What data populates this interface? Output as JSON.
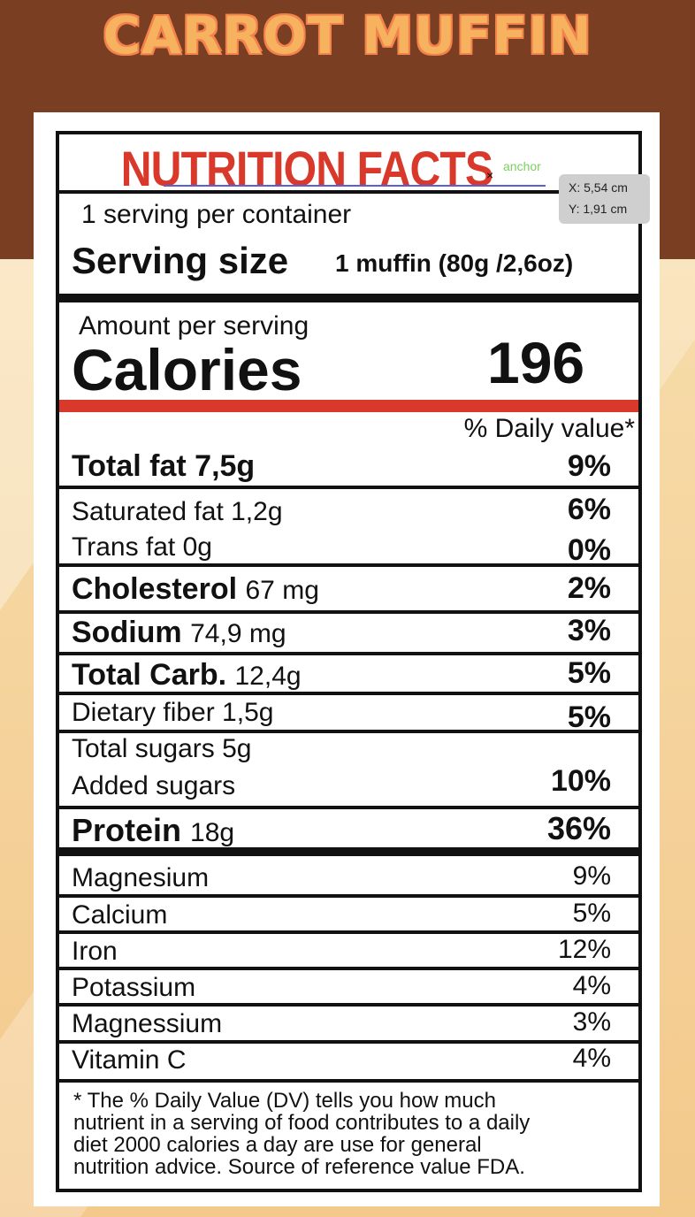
{
  "page": {
    "title": "CARROT MUFFIN"
  },
  "label": {
    "title": "NUTRITION FACTS",
    "anchor_text": "anchor",
    "anchor_marker": "×",
    "servings_per_container": "1 serving per container",
    "serving_size_label": "Serving size",
    "serving_size_value": "1 muffin (80g /2,6oz)",
    "amount_per_serving": "Amount per serving",
    "calories_label": "Calories",
    "calories_value": "196",
    "daily_value_header": "% Daily value*",
    "nutrients": [
      {
        "name": "Total fat",
        "amount": "7,5g",
        "dv": "9%"
      },
      {
        "name": "Saturated fat 1,2g",
        "dv": "6%"
      },
      {
        "name": "Trans fat 0g",
        "dv": "0%"
      },
      {
        "name": "Cholesterol",
        "amount": "67 mg",
        "dv": "2%"
      },
      {
        "name": "Sodium",
        "amount": "74,9 mg",
        "dv": "3%"
      },
      {
        "name": "Total Carb.",
        "amount": "12,4g",
        "dv": "5%"
      },
      {
        "name": "Dietary fiber 1,5g",
        "dv": "5%"
      },
      {
        "name": "Total sugars 5g"
      },
      {
        "name": "Added sugars",
        "dv": "10%"
      },
      {
        "name": "Protein",
        "amount": "18g",
        "dv": "36%"
      }
    ],
    "minerals": [
      {
        "name": "Magnesium",
        "dv": "9%"
      },
      {
        "name": "Calcium",
        "dv": "5%"
      },
      {
        "name": "Iron",
        "dv": "12%"
      },
      {
        "name": "Potassium",
        "dv": "4%"
      },
      {
        "name": "Magnessium",
        "dv": "3%"
      },
      {
        "name": "Vitamin C",
        "dv": "4%"
      }
    ],
    "footnote": [
      "* The % Daily Value (DV) tells you how much",
      "nutrient in a serving of food contributes to a daily",
      "diet 2000 calories a day are use for general",
      "nutrition advice. Source of reference value FDA."
    ]
  },
  "tooltip": {
    "x": "X: 5,54 cm",
    "y": "Y: 1,91 cm"
  },
  "colors": {
    "brand_brown": "#7a3e22",
    "title_orange": "#f6b25e",
    "label_red": "#d8392b"
  }
}
